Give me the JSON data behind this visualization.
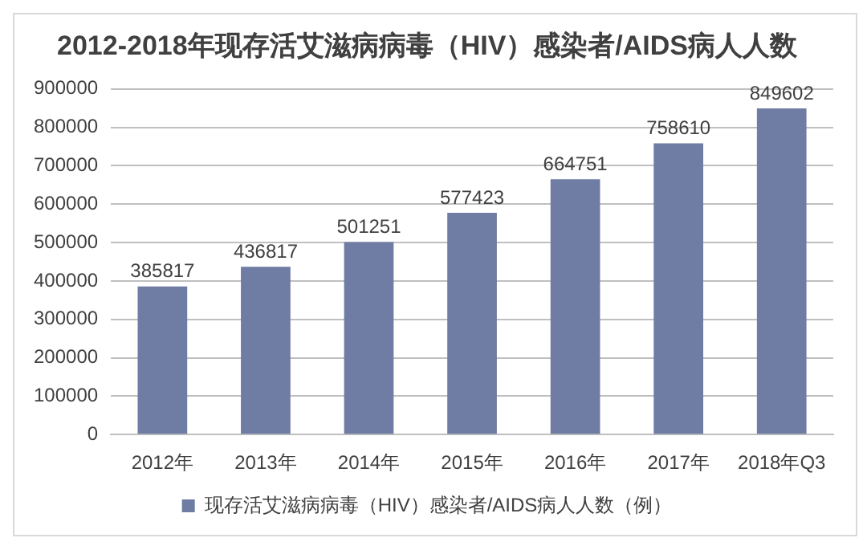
{
  "chart_data": {
    "type": "bar",
    "title": "2012-2018年现存活艾滋病病毒（HIV）感染者/AIDS病人人数",
    "categories": [
      "2012年",
      "2013年",
      "2014年",
      "2015年",
      "2016年",
      "2017年",
      "2018年Q3"
    ],
    "series": [
      {
        "name": "现存活艾滋病病毒（HIV）感染者/AIDS病人人数（例）",
        "color": "#6f7ca3",
        "values": [
          385817,
          436817,
          501251,
          577423,
          664751,
          758610,
          849602
        ]
      }
    ],
    "ylim": [
      0,
      900000
    ],
    "yticks": [
      0,
      100000,
      200000,
      300000,
      400000,
      500000,
      600000,
      700000,
      800000,
      900000
    ],
    "grid": "y",
    "legend": "bottom",
    "data_labels": true
  }
}
